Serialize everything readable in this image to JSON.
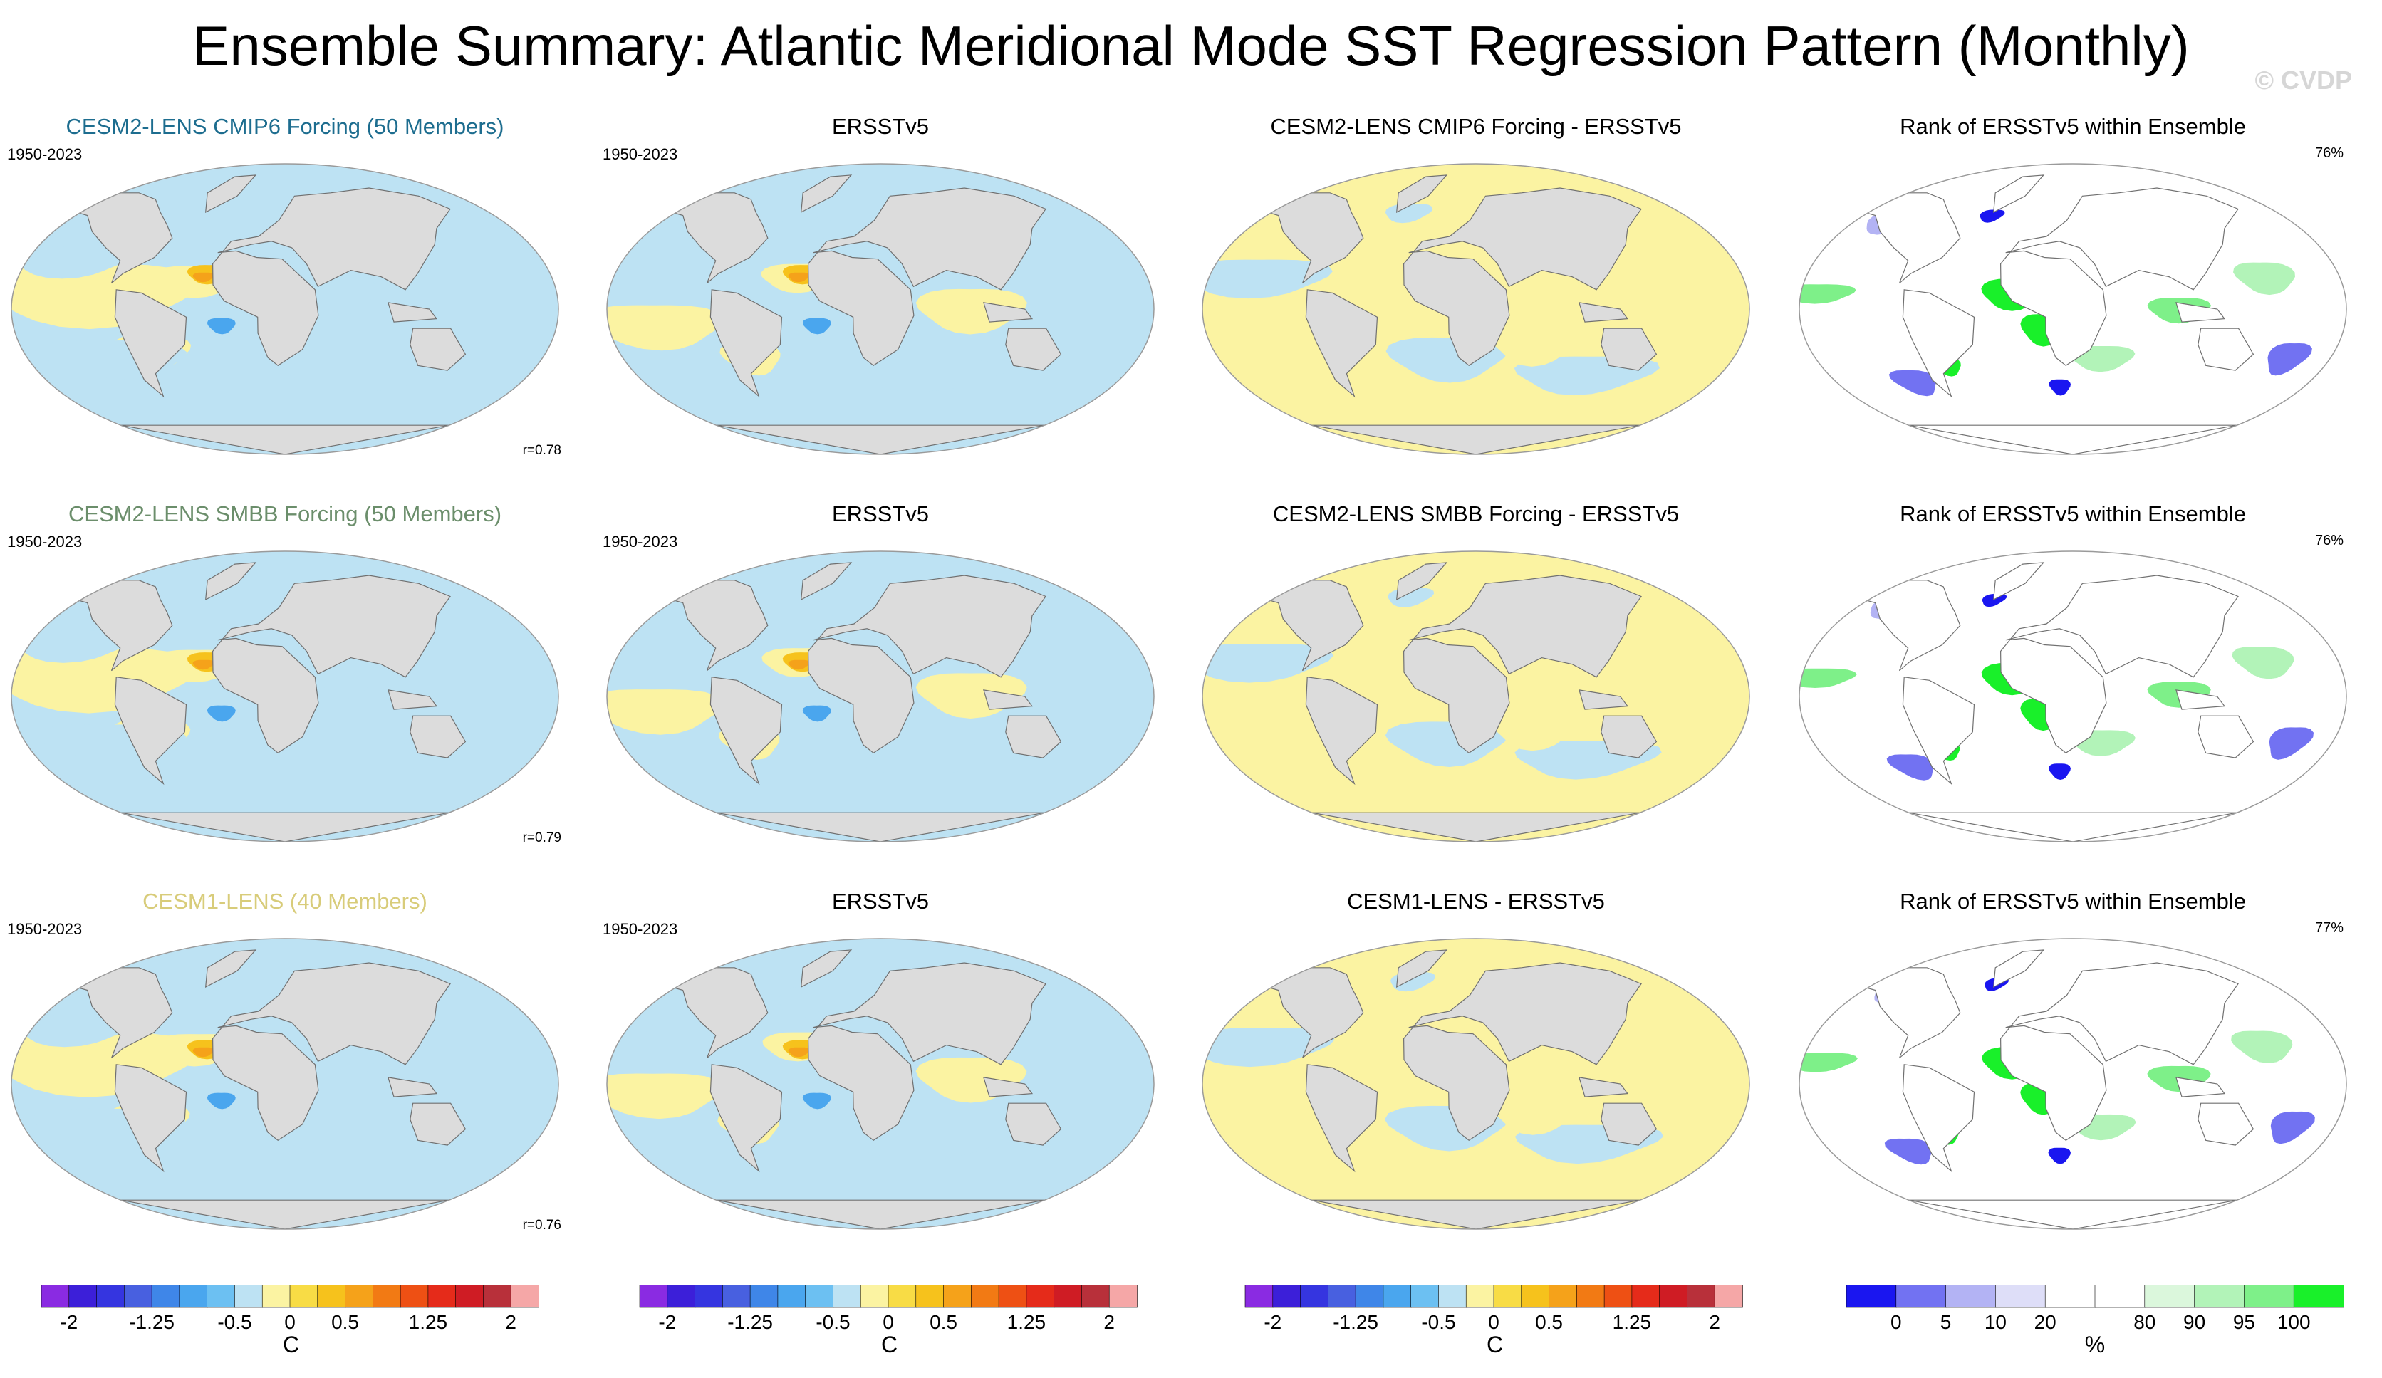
{
  "title": "Ensemble Summary: Atlantic Meridional Mode SST Regression Pattern (Monthly)",
  "watermark": "© CVDP",
  "colors": {
    "ocean_pos": "#fbf3a2",
    "ocean_neg": "#bde2f3",
    "land": "#dcdcdc",
    "coast": "#707070"
  },
  "rows": [
    {
      "model_title": "CESM2-LENS CMIP6 Forcing (50 Members)",
      "model_color": "#1d6d8f",
      "period": "1950-2023",
      "corr": "r=0.78",
      "obs_title": "ERSSTv5",
      "obs_period": "1950-2023",
      "diff_title": "CESM2-LENS CMIP6 Forcing - ERSSTv5",
      "rank_title": "Rank of ERSSTv5 within Ensemble",
      "rank_pct": "76%"
    },
    {
      "model_title": "CESM2-LENS SMBB Forcing (50 Members)",
      "model_color": "#6b8e6b",
      "period": "1950-2023",
      "corr": "r=0.79",
      "obs_title": "ERSSTv5",
      "obs_period": "1950-2023",
      "diff_title": "CESM2-LENS SMBB Forcing - ERSSTv5",
      "rank_title": "Rank of ERSSTv5 within Ensemble",
      "rank_pct": "76%"
    },
    {
      "model_title": "CESM1-LENS (40 Members)",
      "model_color": "#d8cc7a",
      "period": "1950-2023",
      "corr": "r=0.76",
      "obs_title": "ERSSTv5",
      "obs_period": "1950-2023",
      "diff_title": "CESM1-LENS - ERSSTv5",
      "rank_title": "Rank of ERSSTv5 within Ensemble",
      "rank_pct": "77%"
    }
  ],
  "sst_colorbar": {
    "colors": [
      "#8a2be2",
      "#3c1fd9",
      "#3535e0",
      "#4860e0",
      "#3f86e8",
      "#4aa6ee",
      "#6cc0f2",
      "#bde2f3",
      "#fbf3a2",
      "#f8dc45",
      "#f6c21c",
      "#f5a21a",
      "#f27a14",
      "#ee5014",
      "#e52b1a",
      "#cf1c24",
      "#b8303a",
      "#f5a7a7"
    ],
    "ticks": [
      "-2",
      "-1.25",
      "-0.5",
      "0",
      "0.5",
      "1.25",
      "2"
    ],
    "unit": "C"
  },
  "rank_colorbar": {
    "colors": [
      "#1a16f0",
      "#7272f2",
      "#b3b3f4",
      "#dedef8",
      "#ffffff",
      "#ffffff",
      "#dbf7dc",
      "#b2f3b8",
      "#7ef089",
      "#19f02a"
    ],
    "ticks": [
      "0",
      "5",
      "10",
      "20",
      "80",
      "90",
      "95",
      "100"
    ],
    "unit": "%"
  }
}
